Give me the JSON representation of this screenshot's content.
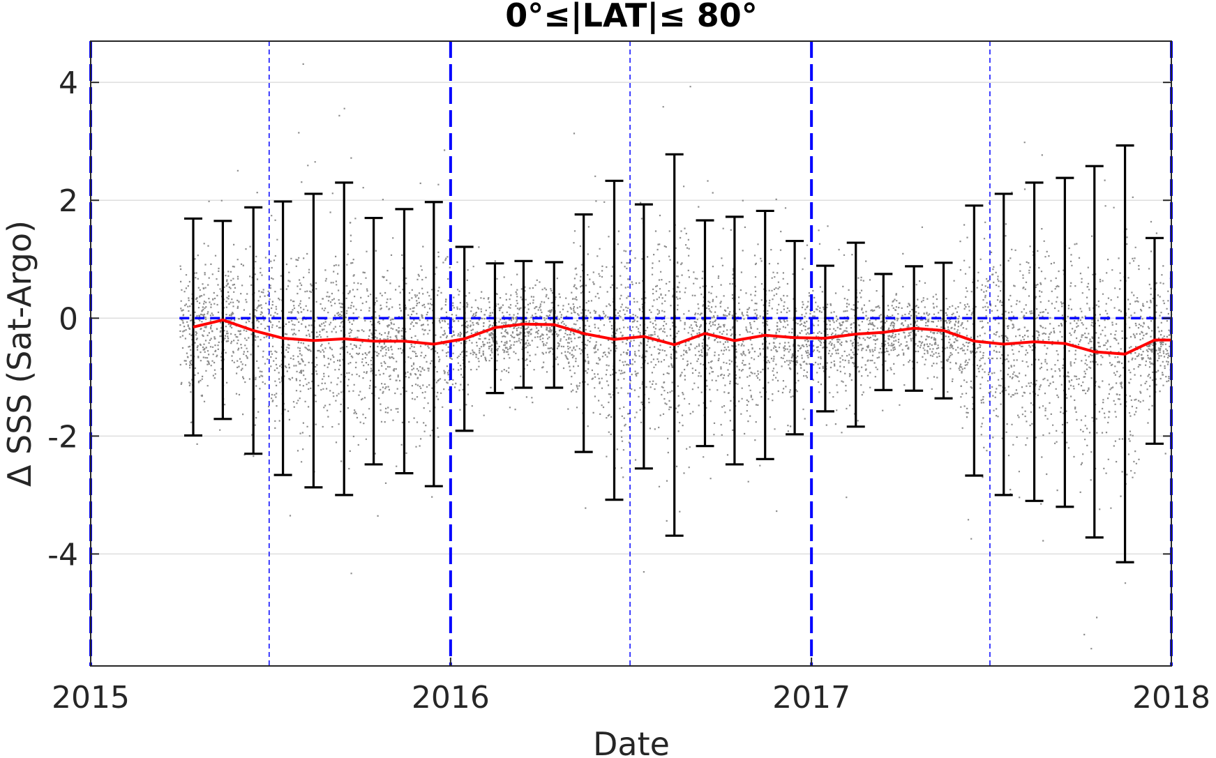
{
  "chart_data": {
    "type": "scatter",
    "title": "0°≤|LAT|≤ 80°",
    "xlabel": "Date",
    "ylabel": "Δ SSS (Sat-Argo)",
    "xlim": [
      "2015-01-01",
      "2018-01-01"
    ],
    "ylim": [
      -5.9,
      4.7
    ],
    "x_ticks": [
      "2015",
      "2016",
      "2017",
      "2018"
    ],
    "y_ticks": [
      4,
      2,
      0,
      -2,
      -4
    ],
    "grid": "horizontal",
    "colors": {
      "scatter": "#808080",
      "mean_line": "#ff0000",
      "error_bars": "#000000",
      "reference_lines": "#0000ff"
    },
    "reference_lines": {
      "horizontal_dashed_y": 0,
      "vertical_thick_dashed": [
        "2015-01-01",
        "2016-01-01",
        "2017-01-01",
        "2018-01-01"
      ],
      "vertical_thin_dashed": [
        "2015-07-01",
        "2016-07-01",
        "2017-07-01"
      ]
    },
    "scatter_x_range": [
      "2015-04-01",
      "2018-01-01"
    ],
    "monthly_series": [
      {
        "x": "2015-04-15",
        "mean": -0.15,
        "low": -1.99,
        "high": 1.69
      },
      {
        "x": "2015-05-15",
        "mean": -0.03,
        "low": -1.71,
        "high": 1.65
      },
      {
        "x": "2015-06-15",
        "mean": -0.21,
        "low": -2.3,
        "high": 1.88
      },
      {
        "x": "2015-07-15",
        "mean": -0.34,
        "low": -2.66,
        "high": 1.98
      },
      {
        "x": "2015-08-15",
        "mean": -0.38,
        "low": -2.87,
        "high": 2.11
      },
      {
        "x": "2015-09-15",
        "mean": -0.35,
        "low": -3.0,
        "high": 2.3
      },
      {
        "x": "2015-10-15",
        "mean": -0.39,
        "low": -2.48,
        "high": 1.7
      },
      {
        "x": "2015-11-15",
        "mean": -0.39,
        "low": -2.63,
        "high": 1.85
      },
      {
        "x": "2015-12-15",
        "mean": -0.44,
        "low": -2.85,
        "high": 1.97
      },
      {
        "x": "2016-01-15",
        "mean": -0.35,
        "low": -1.91,
        "high": 1.21
      },
      {
        "x": "2016-02-15",
        "mean": -0.16,
        "low": -1.27,
        "high": 0.93
      },
      {
        "x": "2016-03-15",
        "mean": -0.1,
        "low": -1.18,
        "high": 0.97
      },
      {
        "x": "2016-04-15",
        "mean": -0.11,
        "low": -1.18,
        "high": 0.95
      },
      {
        "x": "2016-05-15",
        "mean": -0.26,
        "low": -2.27,
        "high": 1.76
      },
      {
        "x": "2016-06-15",
        "mean": -0.36,
        "low": -3.08,
        "high": 2.33
      },
      {
        "x": "2016-07-15",
        "mean": -0.31,
        "low": -2.55,
        "high": 1.93
      },
      {
        "x": "2016-08-15",
        "mean": -0.45,
        "low": -3.69,
        "high": 2.78
      },
      {
        "x": "2016-09-15",
        "mean": -0.26,
        "low": -2.17,
        "high": 1.66
      },
      {
        "x": "2016-10-15",
        "mean": -0.38,
        "low": -2.48,
        "high": 1.72
      },
      {
        "x": "2016-11-15",
        "mean": -0.29,
        "low": -2.39,
        "high": 1.82
      },
      {
        "x": "2016-12-15",
        "mean": -0.33,
        "low": -1.97,
        "high": 1.31
      },
      {
        "x": "2017-01-15",
        "mean": -0.34,
        "low": -1.58,
        "high": 0.89
      },
      {
        "x": "2017-02-15",
        "mean": -0.27,
        "low": -1.84,
        "high": 1.28
      },
      {
        "x": "2017-03-15",
        "mean": -0.24,
        "low": -1.22,
        "high": 0.75
      },
      {
        "x": "2017-04-15",
        "mean": -0.17,
        "low": -1.23,
        "high": 0.88
      },
      {
        "x": "2017-05-15",
        "mean": -0.21,
        "low": -1.36,
        "high": 0.94
      },
      {
        "x": "2017-06-15",
        "mean": -0.39,
        "low": -2.67,
        "high": 1.91
      },
      {
        "x": "2017-07-15",
        "mean": -0.44,
        "low": -3.0,
        "high": 2.11
      },
      {
        "x": "2017-08-15",
        "mean": -0.4,
        "low": -3.1,
        "high": 2.3
      },
      {
        "x": "2017-09-15",
        "mean": -0.43,
        "low": -3.2,
        "high": 2.38
      },
      {
        "x": "2017-10-15",
        "mean": -0.57,
        "low": -3.72,
        "high": 2.58
      },
      {
        "x": "2017-11-15",
        "mean": -0.61,
        "low": -4.14,
        "high": 2.93
      },
      {
        "x": "2017-12-15",
        "mean": -0.37,
        "low": -2.13,
        "high": 1.36
      }
    ]
  }
}
